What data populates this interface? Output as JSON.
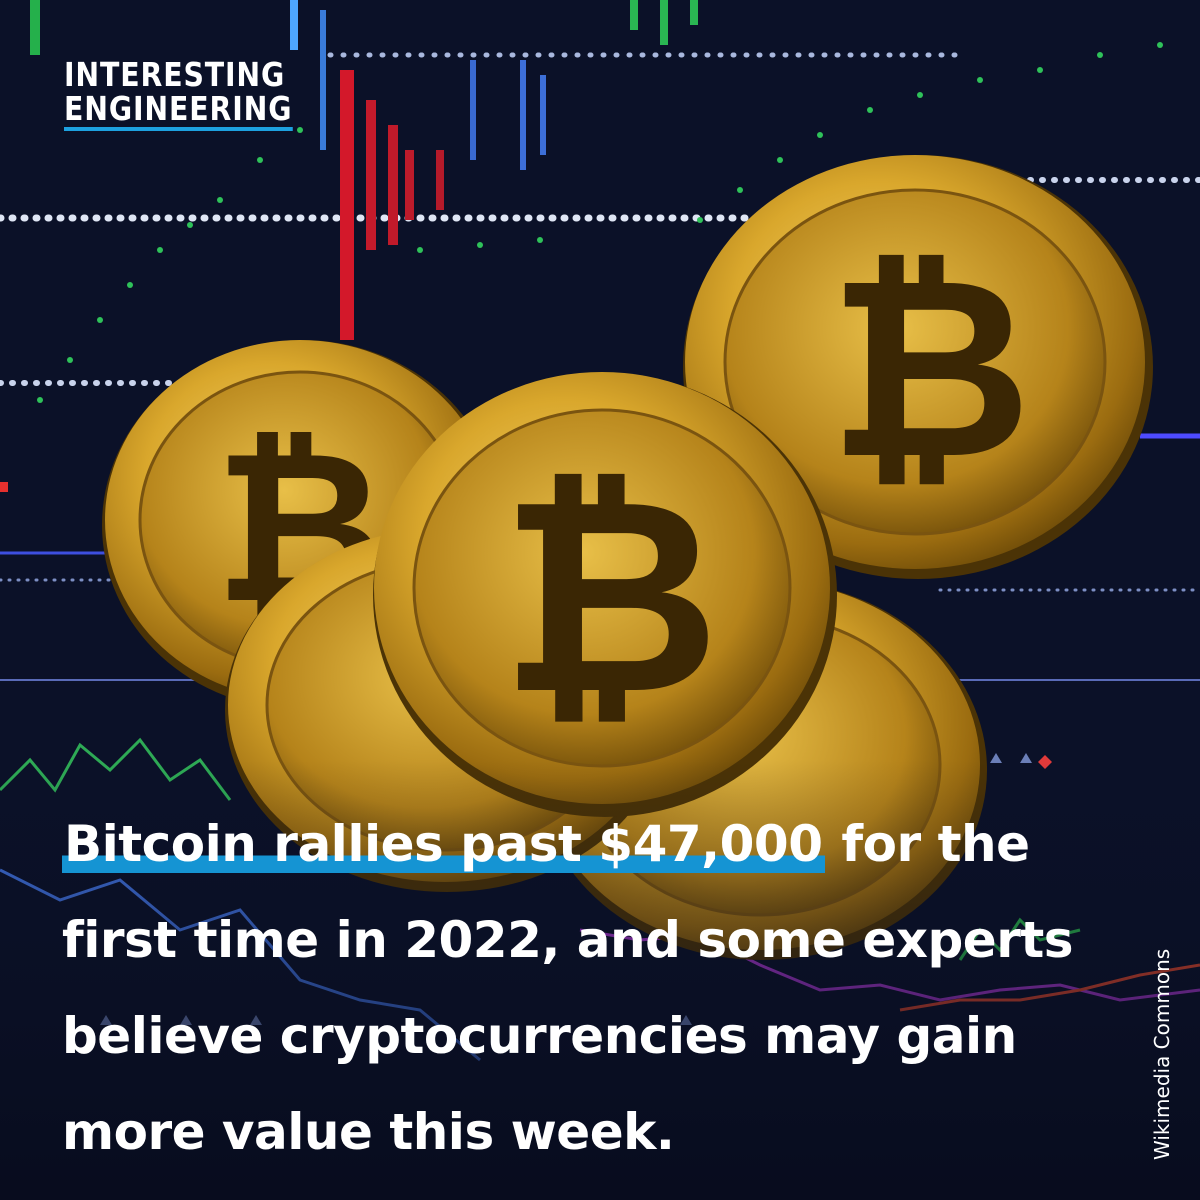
{
  "brand": {
    "line1": "INTERESTING",
    "line2": "ENGINEERING"
  },
  "headline": {
    "highlight": "Bitcoin rallies past $47,000",
    "rest": " for the first time in 2022, and some experts believe cryptocurrencies may gain more value this week."
  },
  "credit": "Wikimedia Commons",
  "coin_symbol": "₿",
  "colors": {
    "accent": "#1594d3",
    "gold": "#d9a72c",
    "background": "#0a0f24"
  }
}
